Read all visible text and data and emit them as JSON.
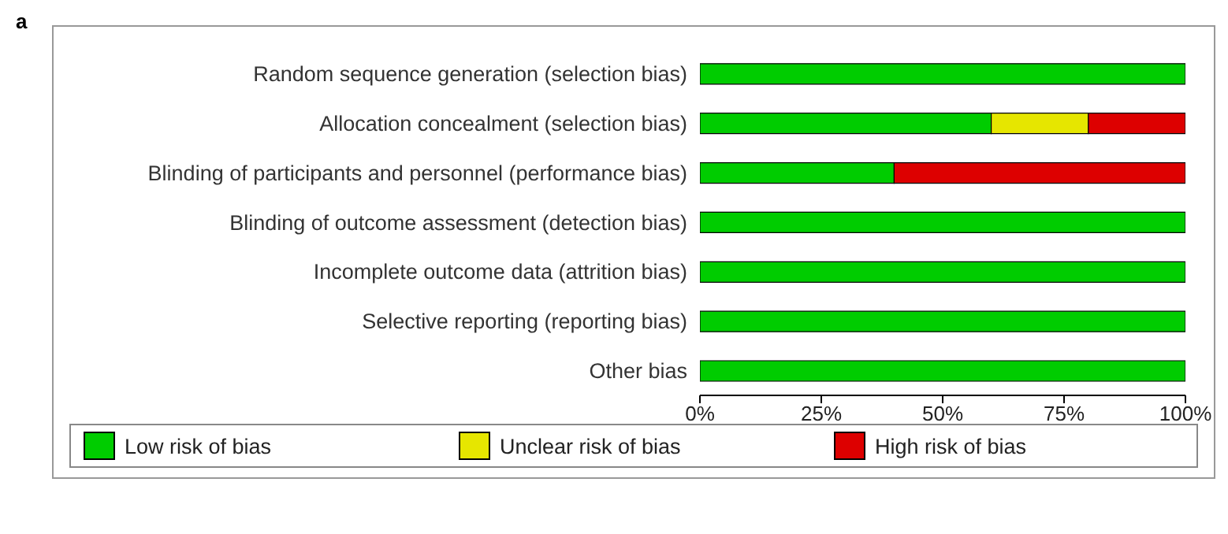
{
  "chart_data": {
    "type": "bar",
    "orientation": "horizontal",
    "stacked": true,
    "categories": [
      "Random sequence generation (selection bias)",
      "Allocation concealment (selection bias)",
      "Blinding of participants and personnel (performance bias)",
      "Blinding of outcome assessment (detection bias)",
      "Incomplete outcome data (attrition bias)",
      "Selective reporting (reporting bias)",
      "Other bias"
    ],
    "series": [
      {
        "name": "Low risk of bias",
        "color": "#00cc00",
        "values": [
          100,
          60,
          40,
          100,
          100,
          100,
          100
        ]
      },
      {
        "name": "Unclear risk of bias",
        "color": "#e6e600",
        "values": [
          0,
          20,
          0,
          0,
          0,
          0,
          0
        ]
      },
      {
        "name": "High risk of bias",
        "color": "#dd0000",
        "values": [
          0,
          20,
          60,
          0,
          0,
          0,
          0
        ]
      }
    ],
    "xlim": [
      0,
      100
    ],
    "xticks": [
      {
        "value": 0,
        "label": "0%"
      },
      {
        "value": 25,
        "label": "25%"
      },
      {
        "value": 50,
        "label": "50%"
      },
      {
        "value": 75,
        "label": "75%"
      },
      {
        "value": 100,
        "label": "100%"
      }
    ],
    "grid": false,
    "legend": "bottom",
    "annotations": [
      "a"
    ]
  }
}
